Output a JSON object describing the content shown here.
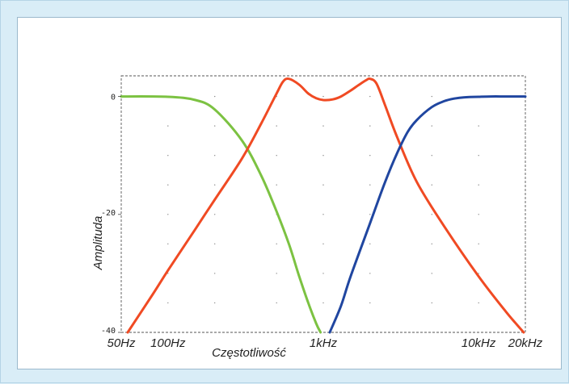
{
  "chart_data": {
    "type": "line",
    "title": "",
    "xlabel": "Częstotliwość",
    "ylabel": "Amplituda",
    "x_scale": "log",
    "xlim": [
      50,
      20000
    ],
    "ylim": [
      -40,
      3.5
    ],
    "grid": "dotted",
    "x_ticks": [
      {
        "value": 50,
        "label": "50Hz"
      },
      {
        "value": 100,
        "label": "100Hz"
      },
      {
        "value": 1000,
        "label": "1kHz"
      },
      {
        "value": 10000,
        "label": "10kHz"
      },
      {
        "value": 20000,
        "label": "20kHz"
      }
    ],
    "y_ticks": [
      {
        "value": 0,
        "label": "0"
      },
      {
        "value": -20,
        "label": "-20"
      },
      {
        "value": -40,
        "label": "-40"
      }
    ],
    "series": [
      {
        "color": "#7cc242",
        "x": [
          50,
          100,
          150,
          200,
          300,
          400,
          500,
          600,
          700,
          800,
          900,
          960
        ],
        "y": [
          0,
          -0.05,
          -0.6,
          -2.2,
          -7.5,
          -13.5,
          -19.5,
          -25,
          -30.5,
          -35,
          -38.5,
          -40
        ]
      },
      {
        "color": "#f04a23",
        "x": [
          55,
          80,
          100,
          150,
          200,
          300,
          400,
          500,
          550,
          600,
          700,
          800,
          900,
          1000,
          1150,
          1300,
          1500,
          1700,
          1900,
          2000,
          2200,
          2500,
          3000,
          4000,
          6000,
          10000,
          15000,
          19500
        ],
        "y": [
          -40,
          -33.5,
          -29.5,
          -22.5,
          -17.5,
          -10.5,
          -4.5,
          0.5,
          2.5,
          3.0,
          2.0,
          0.5,
          -0.3,
          -0.6,
          -0.5,
          0,
          1.0,
          2.0,
          2.8,
          3.0,
          2.2,
          -1.5,
          -7,
          -14.5,
          -22,
          -30.5,
          -36.5,
          -40
        ]
      },
      {
        "color": "#2046a0",
        "x": [
          1100,
          1300,
          1500,
          2000,
          2500,
          3000,
          3500,
          4000,
          5000,
          6000,
          7000,
          8000,
          10000,
          12000,
          15000,
          20000
        ],
        "y": [
          -40,
          -35.5,
          -30.5,
          -21.5,
          -14.5,
          -9.5,
          -6.0,
          -4.0,
          -1.8,
          -0.8,
          -0.35,
          -0.15,
          -0.05,
          0,
          0,
          0
        ]
      }
    ]
  }
}
